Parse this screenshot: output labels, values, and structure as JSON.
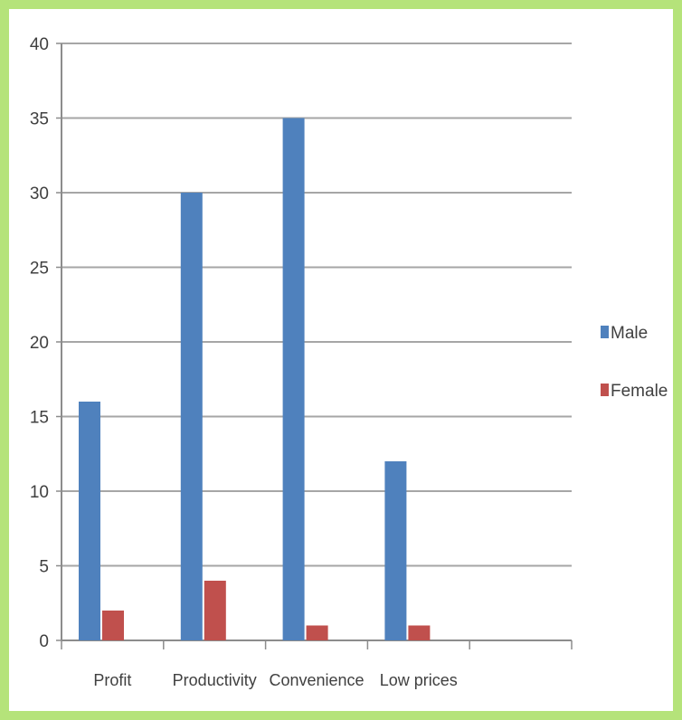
{
  "chart_data": {
    "type": "bar",
    "categories": [
      "Profit",
      "Productivity",
      "Convenience",
      "Low prices",
      ""
    ],
    "series": [
      {
        "name": "Male",
        "values": [
          16,
          30,
          35,
          12,
          null
        ],
        "color": "#4f81bd"
      },
      {
        "name": "Female",
        "values": [
          2,
          4,
          1,
          1,
          null
        ],
        "color": "#c0504d"
      }
    ],
    "ylim": [
      0,
      40
    ],
    "yticks": [
      0,
      5,
      10,
      15,
      20,
      25,
      30,
      35,
      40
    ],
    "grid": true,
    "legend": "right",
    "background": "#b5e37a"
  }
}
